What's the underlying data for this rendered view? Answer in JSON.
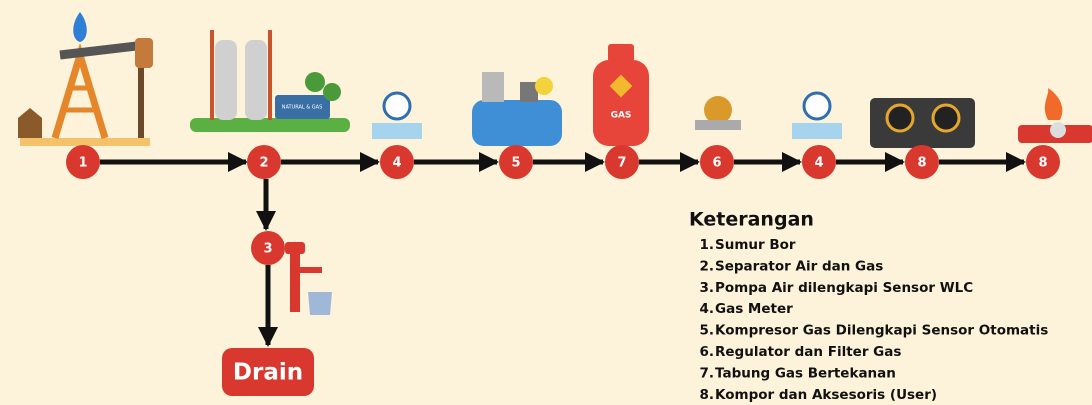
{
  "nodes": [
    {
      "label": "1"
    },
    {
      "label": "2"
    },
    {
      "label": "4"
    },
    {
      "label": "5"
    },
    {
      "label": "7"
    },
    {
      "label": "6"
    },
    {
      "label": "4"
    },
    {
      "label": "8"
    },
    {
      "label": "8"
    },
    {
      "label": "3"
    }
  ],
  "icon_texts": {
    "gas": "GAS",
    "separator": "NATURAL & GAS"
  },
  "drain": "Drain",
  "legend": {
    "title": "Keterangan",
    "items": [
      {
        "number": "1.",
        "text": "Sumur Bor"
      },
      {
        "number": "2.",
        "text": "Separator Air dan Gas"
      },
      {
        "number": "3.",
        "text": "Pompa Air dilengkapi Sensor WLC"
      },
      {
        "number": "4.",
        "text": "Gas Meter"
      },
      {
        "number": "5.",
        "text": "Kompresor Gas Dilengkapi Sensor Otomatis"
      },
      {
        "number": "6.",
        "text": "Regulator dan Filter Gas"
      },
      {
        "number": "7.",
        "text": "Tabung Gas Bertekanan"
      },
      {
        "number": "8.",
        "text": "Kompor dan Aksesoris (User)"
      }
    ]
  }
}
